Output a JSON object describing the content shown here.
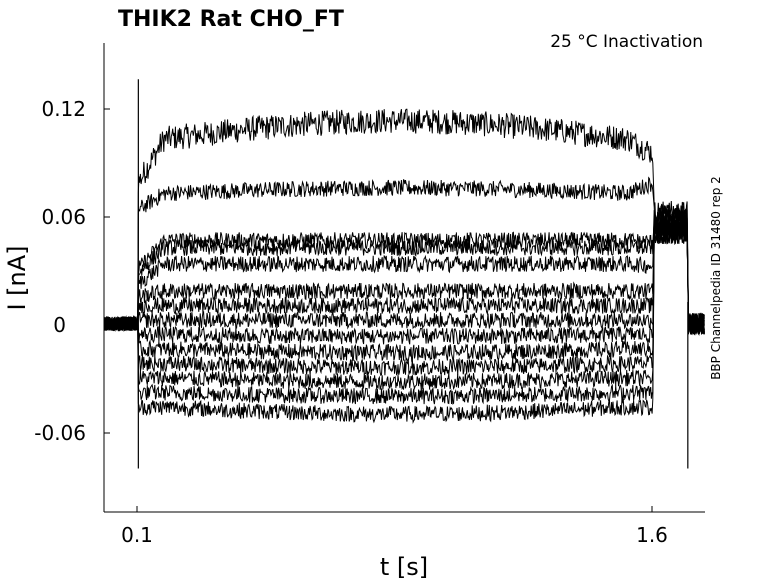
{
  "chart_data": {
    "type": "line",
    "title": "THIK2  Rat  CHO_FT",
    "subtitle": "25 °C  Inactivation",
    "side_label": "BBP Channelpedia ID 31480 rep 2",
    "xlabel": "t [s]",
    "ylabel": "I [nA]",
    "x_ticks": [
      "0.1",
      "1.6"
    ],
    "x_tick_values": [
      0.1,
      1.6
    ],
    "y_ticks": [
      "0.12",
      "0.06",
      "0",
      "-0.06"
    ],
    "y_tick_values": [
      0.12,
      0.06,
      0,
      -0.06
    ],
    "xlim": [
      0.0,
      1.75
    ],
    "ylim": [
      -0.104,
      0.155
    ],
    "grid": false,
    "legend": "none",
    "line_color": "#000000",
    "pulse": {
      "start": 0.1,
      "end": 1.6,
      "tail_end": 1.7
    },
    "series": [
      {
        "baseline": 0.0,
        "onset": 0.078,
        "plateau": 0.102,
        "mid_bump": 0.112,
        "end": 0.094,
        "tail": 0.062
      },
      {
        "baseline": 0.0,
        "onset": 0.063,
        "plateau": 0.072,
        "mid_bump": 0.075,
        "end": 0.078,
        "tail": 0.06
      },
      {
        "baseline": 0.0,
        "onset": 0.03,
        "plateau": 0.046,
        "mid_bump": 0.046,
        "end": 0.045,
        "tail": 0.058
      },
      {
        "baseline": 0.0,
        "onset": 0.028,
        "plateau": 0.042,
        "mid_bump": 0.042,
        "end": 0.042,
        "tail": 0.057
      },
      {
        "baseline": 0.0,
        "onset": 0.022,
        "plateau": 0.033,
        "mid_bump": 0.033,
        "end": 0.032,
        "tail": 0.056
      },
      {
        "baseline": 0.0,
        "onset": 0.015,
        "plateau": 0.018,
        "mid_bump": 0.018,
        "end": 0.018,
        "tail": 0.055
      },
      {
        "baseline": 0.0,
        "onset": 0.01,
        "plateau": 0.01,
        "mid_bump": 0.01,
        "end": 0.01,
        "tail": 0.054
      },
      {
        "baseline": 0.0,
        "onset": 0.002,
        "plateau": 0.002,
        "mid_bump": 0.002,
        "end": 0.002,
        "tail": 0.053
      },
      {
        "baseline": 0.0,
        "onset": -0.006,
        "plateau": -0.006,
        "mid_bump": -0.007,
        "end": -0.006,
        "tail": 0.052
      },
      {
        "baseline": 0.0,
        "onset": -0.014,
        "plateau": -0.014,
        "mid_bump": -0.016,
        "end": -0.014,
        "tail": 0.051
      },
      {
        "baseline": 0.0,
        "onset": -0.022,
        "plateau": -0.022,
        "mid_bump": -0.024,
        "end": -0.022,
        "tail": 0.05
      },
      {
        "baseline": 0.0,
        "onset": -0.03,
        "plateau": -0.03,
        "mid_bump": -0.032,
        "end": -0.03,
        "tail": 0.05
      },
      {
        "baseline": 0.0,
        "onset": -0.038,
        "plateau": -0.038,
        "mid_bump": -0.04,
        "end": -0.038,
        "tail": 0.05
      },
      {
        "baseline": 0.0,
        "onset": -0.046,
        "plateau": -0.046,
        "mid_bump": -0.05,
        "end": -0.046,
        "tail": 0.05
      }
    ]
  }
}
